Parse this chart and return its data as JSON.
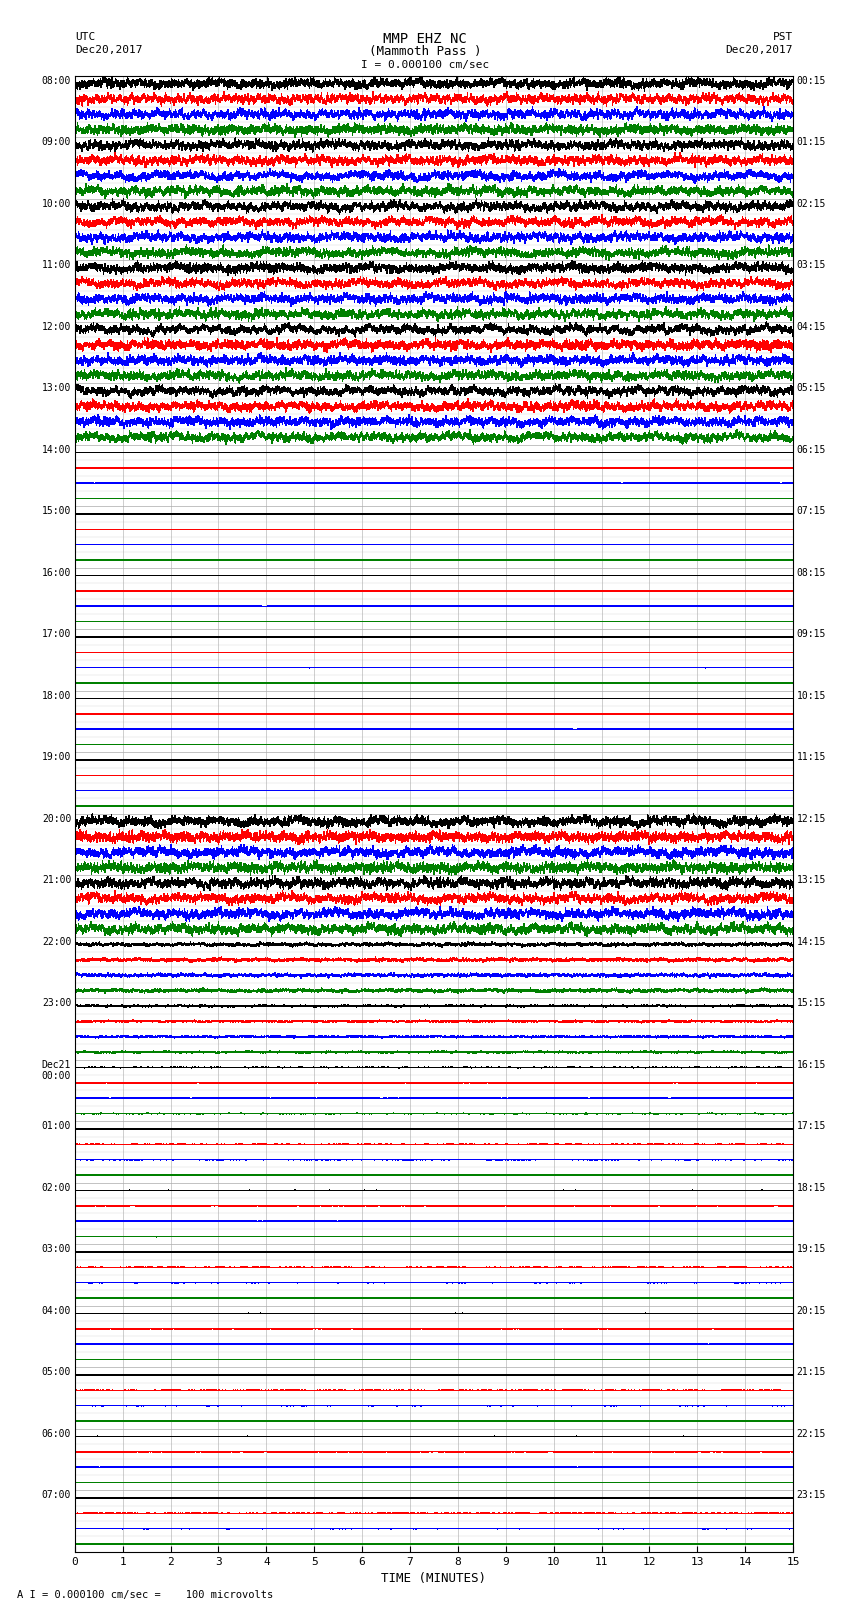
{
  "title_line1": "MMP EHZ NC",
  "title_line2": "(Mammoth Pass )",
  "scale_label": "I = 0.000100 cm/sec",
  "footer_label": "A I = 0.000100 cm/sec =    100 microvolts",
  "left_timezone": "UTC",
  "left_date": "Dec20,2017",
  "right_timezone": "PST",
  "right_date": "Dec20,2017",
  "xlabel": "TIME (MINUTES)",
  "xticks": [
    0,
    1,
    2,
    3,
    4,
    5,
    6,
    7,
    8,
    9,
    10,
    11,
    12,
    13,
    14,
    15
  ],
  "xlim": [
    0,
    15
  ],
  "fig_width": 8.5,
  "fig_height": 16.13,
  "dpi": 100,
  "left_labels": [
    "08:00",
    "09:00",
    "10:00",
    "11:00",
    "12:00",
    "13:00",
    "14:00",
    "15:00",
    "16:00",
    "17:00",
    "18:00",
    "19:00",
    "20:00",
    "21:00",
    "22:00",
    "23:00",
    "Dec21\n00:00",
    "01:00",
    "02:00",
    "03:00",
    "04:00",
    "05:00",
    "06:00",
    "07:00"
  ],
  "right_labels": [
    "00:15",
    "01:15",
    "02:15",
    "03:15",
    "04:15",
    "05:15",
    "06:15",
    "07:15",
    "08:15",
    "09:15",
    "10:15",
    "11:15",
    "12:15",
    "13:15",
    "14:15",
    "15:15",
    "16:15",
    "17:15",
    "18:15",
    "19:15",
    "20:15",
    "21:15",
    "22:15",
    "23:15"
  ],
  "num_hours": 24,
  "traces_per_hour": 4,
  "colors_per_hour": [
    "black",
    "red",
    "blue",
    "green"
  ],
  "background_color": "white",
  "grid_color": "#aaaaaa",
  "hour_amplitudes": [
    0.42,
    0.42,
    0.42,
    0.42,
    0.42,
    0.42,
    0.04,
    0.04,
    0.04,
    0.04,
    0.04,
    0.04,
    0.45,
    0.45,
    0.25,
    0.18,
    0.1,
    0.08,
    0.08,
    0.07,
    0.07,
    0.07,
    0.07,
    0.07
  ],
  "hour_noise": [
    0.12,
    0.12,
    0.12,
    0.12,
    0.12,
    0.12,
    0.01,
    0.01,
    0.01,
    0.01,
    0.01,
    0.01,
    0.12,
    0.12,
    0.07,
    0.05,
    0.03,
    0.02,
    0.02,
    0.02,
    0.02,
    0.02,
    0.02,
    0.02
  ]
}
